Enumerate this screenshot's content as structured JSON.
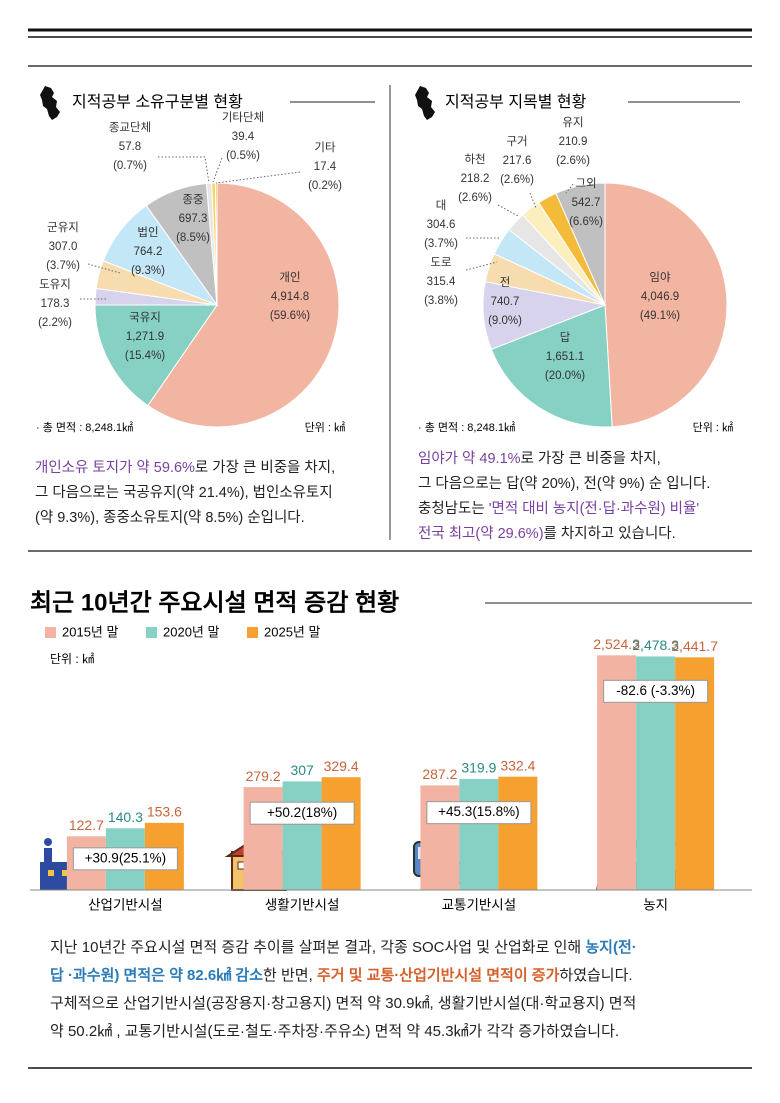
{
  "chart_data": [
    {
      "type": "pie",
      "title": "지적공부 소유구분별 현황",
      "categories": [
        "개인",
        "국유지",
        "도유지",
        "군유지",
        "법인",
        "종중",
        "종교단체",
        "기타단체",
        "기타"
      ],
      "values": [
        4914.8,
        1271.9,
        178.3,
        307.0,
        764.2,
        697.3,
        57.8,
        39.4,
        17.4
      ],
      "value_labels": [
        "4,914.8",
        "1,271.9",
        "178.3",
        "307.0",
        "764.2",
        "697.3",
        "57.8",
        "39.4",
        "17.4"
      ],
      "percent_labels": [
        "(59.6%)",
        "(15.4%)",
        "(2.2%)",
        "(3.7%)",
        "(9.3%)",
        "(8.5%)",
        "(0.7%)",
        "(0.5%)",
        "(0.2%)"
      ],
      "colors": [
        "#f2b5a2",
        "#86d0c4",
        "#d8d3ec",
        "#f6dcae",
        "#c3e7f7",
        "#c0c0c0",
        "#e6e6e6",
        "#f8d35e",
        "#f1a72f"
      ],
      "footnote": "· 총 면적 : 8,248.1㎢",
      "unit": "단위 : ㎢"
    },
    {
      "type": "pie",
      "title": "지적공부 지목별 현황",
      "categories": [
        "임야",
        "답",
        "전",
        "도로",
        "대",
        "하천",
        "구거",
        "유지",
        "그외"
      ],
      "values": [
        4046.9,
        1651.1,
        740.7,
        315.4,
        304.6,
        218.2,
        217.6,
        210.9,
        542.7
      ],
      "value_labels": [
        "4,046.9",
        "1,651.1",
        "740.7",
        "315.4",
        "304.6",
        "218.2",
        "217.6",
        "210.9",
        "542.7"
      ],
      "percent_labels": [
        "(49.1%)",
        "(20.0%)",
        "(9.0%)",
        "(3.8%)",
        "(3.7%)",
        "(2.6%)",
        "(2.6%)",
        "(2.6%)",
        "(6.6%)"
      ],
      "colors": [
        "#f2b5a2",
        "#86d0c4",
        "#d8d3ec",
        "#f6dcae",
        "#c3e7f7",
        "#e6e6e6",
        "#fbefc0",
        "#f4bb3a",
        "#c0c0c0"
      ],
      "footnote": "· 총 면적 : 8,248.1㎢",
      "unit": "단위 : ㎢"
    },
    {
      "type": "bar",
      "title": "최근 10년간 주요시설  면적 증감 현황",
      "unit": "단위 : ㎢",
      "categories": [
        "산업기반시설",
        "생활기반시설",
        "교통기반시설",
        "농지"
      ],
      "series": [
        {
          "name": "2015년 말",
          "color": "#f2b3a3",
          "label_color": "#c8643c",
          "values": [
            122.7,
            279.2,
            287.2,
            2524.3
          ],
          "value_labels": [
            "122.7",
            "279.2",
            "287.2",
            "2,524.3"
          ]
        },
        {
          "name": "2020년 말",
          "color": "#86d0c4",
          "label_color": "#2b8a84",
          "values": [
            140.3,
            307,
            319.9,
            2478.3
          ],
          "value_labels": [
            "140.3",
            "307",
            "319.9",
            "2,478.3"
          ]
        },
        {
          "name": "2025년 말",
          "color": "#f5a02f",
          "label_color": "#c8643c",
          "values": [
            153.6,
            329.4,
            332.4,
            2441.7
          ],
          "value_labels": [
            "153.6",
            "329.4",
            "332.4",
            "2,441.7"
          ]
        }
      ],
      "annotations": [
        "+30.9(25.1%)",
        "+50.2(18%)",
        "+45.3(15.8%)",
        "-82.6 (-3.3%)"
      ],
      "ylim": [
        50,
        3000
      ],
      "log_scale": true
    }
  ],
  "summary_left": [
    "개인소유 토지가 약 59.6%",
    "로 가장 큰 비중을 차지,",
    "그 다음으로는 국공유지(약 21.4%), 법인소유토지",
    "(약 9.3%), 종중소유토지(약 8.5%) 순입니다."
  ],
  "summary_right": [
    "임야가 약 49.1%",
    "로 가장 큰 비중을 차지,",
    "그 다음으로는 답(약 20%), 전(약 9%) 순 입니다.",
    "충청남도는 ",
    "'면적 대비 농지(전·답·과수원) 비율'",
    "전국 최고(약 29.6%)",
    "를 차지하고 있습니다."
  ],
  "summary_bottom": [
    "지난 10년간 주요시설 면적 증감 추이를 살펴본 결과, 각종 SOC사업 및 산업화로 인해 ",
    "농지(전·",
    "답 ·과수원) 면적은 약 82.6㎢ 감소",
    "한 반면, ",
    "주거 및 교통·산업기반시설 면적이 증가",
    "하였습니다.",
    "구체적으로 산업기반시설(공장용지·창고용지) 면적 약 30.9㎢, 생활기반시설(대·학교용지) 면적",
    "약 50.2㎢ , 교통기반시설(도로·철도·주차장·주유소) 면적 약 45.3㎢가 각각 증가하였습니다."
  ]
}
